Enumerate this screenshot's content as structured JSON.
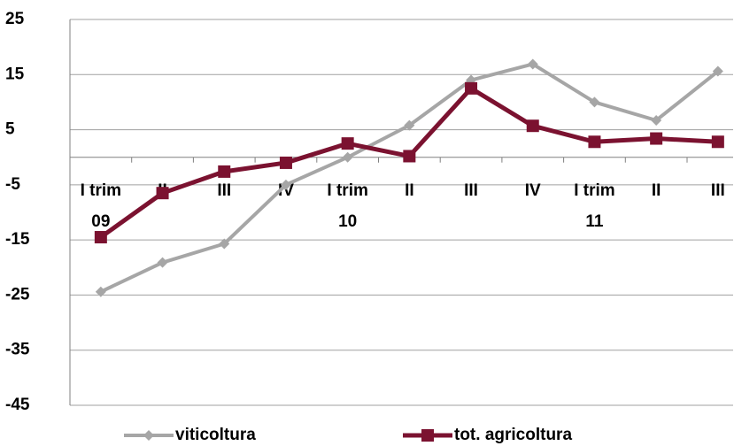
{
  "chart_data": {
    "type": "line",
    "categories": [
      "I trim",
      "II",
      "III",
      "IV",
      "I trim",
      "II",
      "III",
      "IV",
      "I trim",
      "II",
      "III"
    ],
    "years": [
      "09",
      null,
      null,
      null,
      "10",
      null,
      null,
      null,
      "11",
      null,
      null
    ],
    "series": [
      {
        "name": "viticoltura",
        "color": "#a6a6a6",
        "marker": "diamond",
        "values": [
          -24.4,
          -19.1,
          -15.7,
          -5.0,
          0.0,
          5.8,
          14.0,
          16.9,
          10.0,
          6.7,
          15.6
        ]
      },
      {
        "name": "tot. agricoltura",
        "color": "#7b1230",
        "marker": "square",
        "values": [
          -14.5,
          -6.5,
          -2.6,
          -1.0,
          2.5,
          0.2,
          12.5,
          5.7,
          2.8,
          3.4,
          2.8
        ]
      }
    ],
    "ylim": [
      -45,
      25
    ],
    "yticks": [
      25,
      15,
      5,
      -5,
      -15,
      -25,
      -35,
      -45
    ],
    "grid": true,
    "legend": "bottom"
  }
}
